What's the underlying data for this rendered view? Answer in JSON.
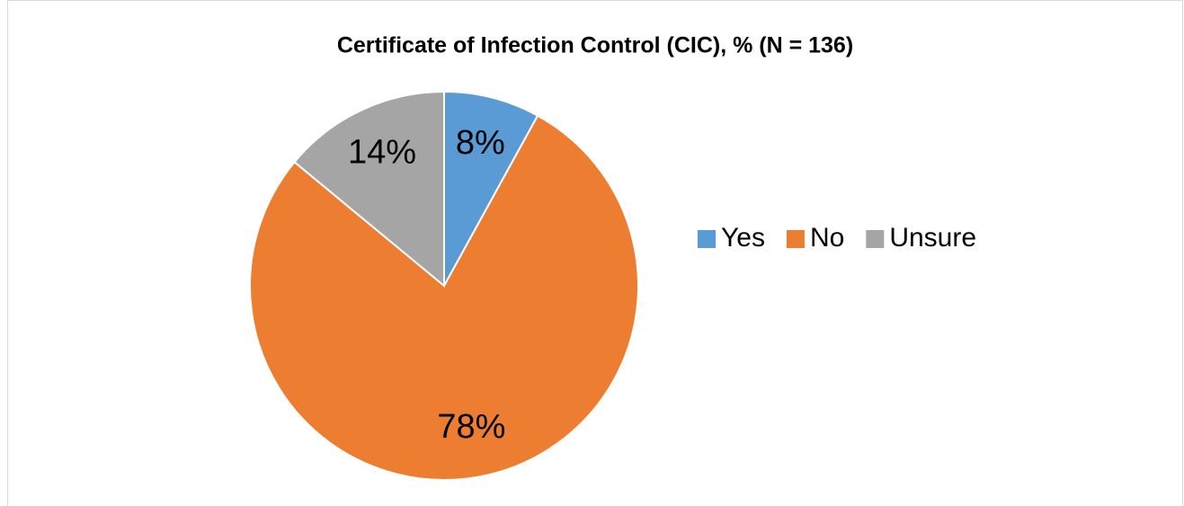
{
  "chart_data": {
    "type": "pie",
    "title": "Certificate of Infection Control (CIC), % (N = 136)",
    "categories": [
      "Yes",
      "No",
      "Unsure"
    ],
    "values": [
      8,
      78,
      14
    ],
    "value_labels": [
      "8%",
      "78%",
      "14%"
    ],
    "colors": [
      "#5b9bd5",
      "#ed7d31",
      "#a5a5a5"
    ],
    "legend": "right"
  }
}
